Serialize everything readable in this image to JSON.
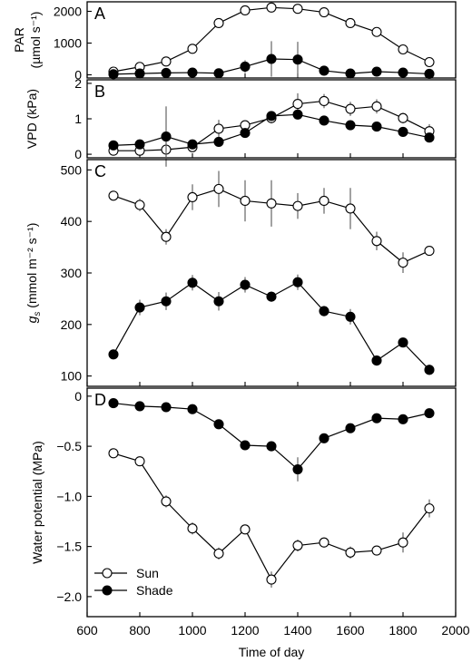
{
  "chart_data": [
    {
      "type": "line",
      "panel": "A",
      "ylabel": "PAR (µmol s⁻¹)",
      "ylabel_lines": [
        "PAR",
        "(µmol s⁻¹)"
      ],
      "ylim": [
        -100,
        2300
      ],
      "yticks": [
        0,
        1000,
        2000
      ],
      "x": [
        700,
        800,
        900,
        1000,
        1100,
        1200,
        1300,
        1400,
        1500,
        1600,
        1700,
        1800,
        1900
      ],
      "series": [
        {
          "name": "Sun",
          "values": [
            100,
            250,
            420,
            820,
            1630,
            2030,
            2120,
            2080,
            1970,
            1630,
            1350,
            800,
            400
          ],
          "errors": [
            0,
            0,
            0,
            0,
            130,
            0,
            0,
            100,
            0,
            0,
            0,
            0,
            0
          ]
        },
        {
          "name": "Shade",
          "values": [
            20,
            40,
            60,
            70,
            50,
            260,
            500,
            480,
            130,
            40,
            100,
            70,
            30
          ],
          "errors": [
            0,
            0,
            0,
            0,
            0,
            200,
            560,
            560,
            0,
            0,
            0,
            0,
            0
          ]
        }
      ]
    },
    {
      "type": "line",
      "panel": "B",
      "ylabel": "VPD (kPa)",
      "ylim": [
        -0.1,
        2.1
      ],
      "yticks": [
        0,
        1,
        2
      ],
      "x": [
        700,
        800,
        900,
        1000,
        1100,
        1200,
        1300,
        1400,
        1500,
        1600,
        1700,
        1800,
        1900
      ],
      "series": [
        {
          "name": "Sun",
          "values": [
            0.1,
            0.1,
            0.13,
            0.2,
            0.72,
            0.82,
            1.02,
            1.42,
            1.5,
            1.28,
            1.35,
            1.02,
            0.65
          ],
          "errors": [
            0,
            0,
            0.25,
            0.1,
            0.25,
            0,
            0.15,
            0.3,
            0.2,
            0.2,
            0.2,
            0.15,
            0.2
          ]
        },
        {
          "name": "Shade",
          "values": [
            0.25,
            0.28,
            0.5,
            0.28,
            0.35,
            0.6,
            1.08,
            1.12,
            0.95,
            0.82,
            0.78,
            0.63,
            0.47
          ],
          "errors": [
            0,
            0,
            0.85,
            0,
            0,
            0,
            0,
            0,
            0,
            0,
            0,
            0,
            0
          ]
        }
      ]
    },
    {
      "type": "line",
      "panel": "C",
      "ylabel": "gs (mmol m⁻² s⁻¹)",
      "ylim": [
        80,
        520
      ],
      "yticks": [
        100,
        200,
        300,
        400,
        500
      ],
      "x": [
        700,
        800,
        900,
        1000,
        1100,
        1200,
        1300,
        1400,
        1500,
        1600,
        1700,
        1800,
        1900
      ],
      "series": [
        {
          "name": "Sun",
          "values": [
            450,
            432,
            370,
            447,
            463,
            440,
            435,
            430,
            440,
            425,
            362,
            320,
            343
          ],
          "errors": [
            0,
            12,
            15,
            25,
            35,
            40,
            45,
            25,
            25,
            40,
            18,
            20,
            0
          ]
        },
        {
          "name": "Shade",
          "values": [
            142,
            233,
            245,
            281,
            245,
            277,
            254,
            282,
            226,
            215,
            130,
            165,
            112
          ],
          "errors": [
            0,
            15,
            17,
            15,
            18,
            15,
            10,
            15,
            10,
            15,
            10,
            0,
            10
          ]
        }
      ]
    },
    {
      "type": "line",
      "panel": "D",
      "ylabel": "Water potential (MPa)",
      "xlabel": "Time of day",
      "xlim": [
        600,
        2000
      ],
      "xticks": [
        600,
        800,
        1000,
        1200,
        1400,
        1600,
        1800,
        2000
      ],
      "ylim": [
        -2.2,
        0.08
      ],
      "yticks": [
        0,
        -0.5,
        -1.0,
        -1.5,
        -2.0
      ],
      "ytick_labels": [
        "0",
        "−0.5",
        "−1.0",
        "−1.5",
        "−2.0"
      ],
      "x": [
        700,
        800,
        900,
        1000,
        1100,
        1200,
        1300,
        1400,
        1500,
        1600,
        1700,
        1800,
        1900
      ],
      "series": [
        {
          "name": "Sun",
          "values": [
            -0.57,
            -0.65,
            -1.05,
            -1.32,
            -1.57,
            -1.33,
            -1.83,
            -1.49,
            -1.46,
            -1.56,
            -1.54,
            -1.46,
            -1.12
          ],
          "errors": [
            0,
            0,
            0.06,
            0.06,
            0.06,
            0,
            0.08,
            0.06,
            0.05,
            0.06,
            0.04,
            0.1,
            0.09
          ]
        },
        {
          "name": "Shade",
          "values": [
            -0.07,
            -0.1,
            -0.11,
            -0.13,
            -0.28,
            -0.49,
            -0.5,
            -0.73,
            -0.42,
            -0.32,
            -0.22,
            -0.23,
            -0.17
          ],
          "errors": [
            0,
            0,
            0,
            0,
            0,
            0,
            0.05,
            0.12,
            0,
            0,
            0,
            0,
            0
          ]
        }
      ],
      "legend": {
        "placement": "bottom-left",
        "entries": [
          "Sun",
          "Shade"
        ]
      }
    }
  ]
}
